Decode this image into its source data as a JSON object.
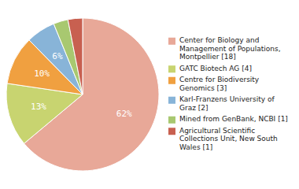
{
  "chart_data": {
    "type": "pie",
    "categories": [
      "Center for Biology and\nManagement of Populations,\nMontpellier [18]",
      "GATC Biotech AG [4]",
      "Centre for Biodiversity\nGenomics [3]",
      "Karl-Franzens University of\nGraz [2]",
      "Mined from GenBank, NCBI [1]",
      "Agricultural Scientific\nCollections Unit, New South\nWales [1]"
    ],
    "values": [
      62,
      13,
      10,
      6,
      3,
      3
    ],
    "value_labels": [
      "62%",
      "13%",
      "10%",
      "6%",
      null,
      null
    ],
    "colors": [
      "#e8a898",
      "#c8d470",
      "#f0a040",
      "#88b4d8",
      "#a8c870",
      "#c86050"
    ],
    "data_labels": true,
    "legend": "right"
  }
}
